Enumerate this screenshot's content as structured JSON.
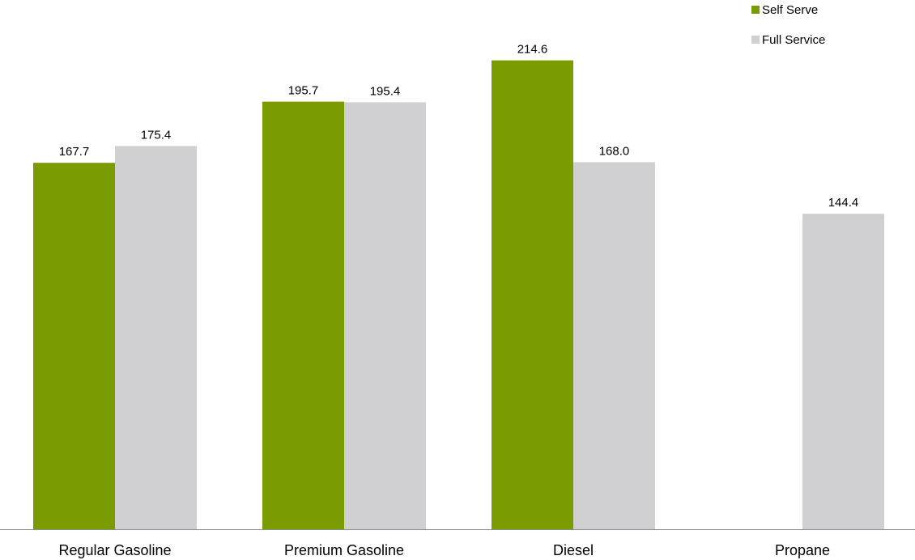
{
  "chart_data": {
    "type": "bar",
    "categories": [
      "Regular Gasoline",
      "Premium Gasoline",
      "Diesel",
      "Propane"
    ],
    "series": [
      {
        "name": "Self Serve",
        "color": "#7a9c00",
        "values": [
          167.7,
          195.7,
          214.6,
          null
        ]
      },
      {
        "name": "Full Service",
        "color": "#d0cfd1",
        "values": [
          175.4,
          195.4,
          168.0,
          144.4
        ]
      }
    ],
    "value_labels": [
      [
        "167.7",
        "195.7",
        "214.6",
        ""
      ],
      [
        "175.4",
        "195.4",
        "168.0",
        "144.4"
      ]
    ],
    "title": "",
    "xlabel": "",
    "ylabel": "",
    "ylim": [
      0,
      225
    ],
    "grid": false,
    "legend_position": "top-right"
  }
}
